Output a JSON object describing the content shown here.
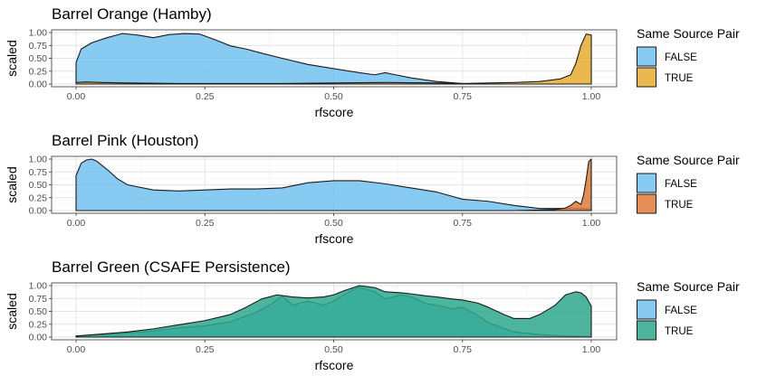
{
  "chart_data": [
    {
      "type": "area",
      "title": "Barrel Orange (Hamby)",
      "xlabel": "rfscore",
      "ylabel": "scaled",
      "xlim": [
        0,
        1
      ],
      "ylim": [
        0,
        1
      ],
      "x_ticks": [
        "0.00",
        "0.25",
        "0.50",
        "0.75",
        "1.00"
      ],
      "y_ticks": [
        "0.00",
        "0.25",
        "0.50",
        "0.75",
        "1.00"
      ],
      "grid": true,
      "legend": {
        "title": "Same Source Pair",
        "position": "right",
        "entries": [
          "FALSE",
          "TRUE"
        ]
      },
      "series": [
        {
          "name": "FALSE",
          "color": "#73C2F0",
          "x": [
            0,
            0.01,
            0.03,
            0.06,
            0.09,
            0.12,
            0.15,
            0.18,
            0.21,
            0.24,
            0.27,
            0.3,
            0.33,
            0.36,
            0.4,
            0.45,
            0.5,
            0.55,
            0.58,
            0.6,
            0.62,
            0.65,
            0.7,
            0.75,
            0.8,
            0.9,
            1.0
          ],
          "y": [
            0.42,
            0.68,
            0.8,
            0.9,
            0.98,
            0.95,
            0.9,
            0.96,
            0.98,
            0.97,
            0.86,
            0.74,
            0.68,
            0.6,
            0.5,
            0.38,
            0.3,
            0.22,
            0.18,
            0.22,
            0.18,
            0.12,
            0.05,
            0.01,
            0.0,
            0.0,
            0.0
          ]
        },
        {
          "name": "TRUE",
          "color": "#E8AB2E",
          "x": [
            0,
            0.02,
            0.05,
            0.1,
            0.2,
            0.3,
            0.4,
            0.5,
            0.6,
            0.7,
            0.75,
            0.8,
            0.85,
            0.9,
            0.94,
            0.96,
            0.97,
            0.98,
            0.99,
            1.0
          ],
          "y": [
            0.03,
            0.04,
            0.03,
            0.02,
            0.01,
            0.01,
            0.01,
            0.02,
            0.03,
            0.02,
            0.01,
            0.02,
            0.03,
            0.05,
            0.1,
            0.18,
            0.4,
            0.75,
            0.97,
            0.95
          ]
        }
      ]
    },
    {
      "type": "area",
      "title": "Barrel Pink (Houston)",
      "xlabel": "rfscore",
      "ylabel": "scaled",
      "xlim": [
        0,
        1
      ],
      "ylim": [
        0,
        1
      ],
      "x_ticks": [
        "0.00",
        "0.25",
        "0.50",
        "0.75",
        "1.00"
      ],
      "y_ticks": [
        "0.00",
        "0.25",
        "0.50",
        "0.75",
        "1.00"
      ],
      "grid": true,
      "legend": {
        "title": "Same Source Pair",
        "position": "right",
        "entries": [
          "FALSE",
          "TRUE"
        ]
      },
      "series": [
        {
          "name": "FALSE",
          "color": "#73C2F0",
          "x": [
            0,
            0.01,
            0.02,
            0.03,
            0.04,
            0.06,
            0.08,
            0.1,
            0.15,
            0.2,
            0.25,
            0.3,
            0.35,
            0.4,
            0.45,
            0.5,
            0.55,
            0.6,
            0.65,
            0.7,
            0.75,
            0.8,
            0.85,
            0.9,
            0.95,
            0.98,
            1.0
          ],
          "y": [
            0.68,
            0.92,
            0.98,
            1.0,
            0.96,
            0.8,
            0.62,
            0.5,
            0.4,
            0.38,
            0.4,
            0.42,
            0.42,
            0.44,
            0.54,
            0.58,
            0.58,
            0.52,
            0.44,
            0.36,
            0.22,
            0.18,
            0.1,
            0.04,
            0.04,
            0.04,
            0.03
          ]
        },
        {
          "name": "TRUE",
          "color": "#E07B39",
          "x": [
            0,
            0.85,
            0.9,
            0.93,
            0.95,
            0.96,
            0.97,
            0.98,
            0.985,
            0.99,
            0.995,
            1.0
          ],
          "y": [
            0.0,
            0.0,
            0.01,
            0.02,
            0.05,
            0.1,
            0.18,
            0.12,
            0.3,
            0.6,
            0.95,
            1.0
          ]
        }
      ]
    },
    {
      "type": "area",
      "title": "Barrel Green (CSAFE Persistence)",
      "xlabel": "rfscore",
      "ylabel": "scaled",
      "xlim": [
        0,
        1
      ],
      "ylim": [
        0,
        1
      ],
      "x_ticks": [
        "0.00",
        "0.25",
        "0.50",
        "0.75",
        "1.00"
      ],
      "y_ticks": [
        "0.00",
        "0.25",
        "0.50",
        "0.75",
        "1.00"
      ],
      "grid": true,
      "legend": {
        "title": "Same Source Pair",
        "position": "right",
        "entries": [
          "FALSE",
          "TRUE"
        ]
      },
      "series": [
        {
          "name": "FALSE",
          "color": "#73C2F0",
          "x": [
            0,
            0.05,
            0.1,
            0.15,
            0.2,
            0.25,
            0.3,
            0.35,
            0.38,
            0.4,
            0.42,
            0.45,
            0.48,
            0.5,
            0.53,
            0.55,
            0.58,
            0.6,
            0.63,
            0.65,
            0.68,
            0.7,
            0.73,
            0.75,
            0.78,
            0.8,
            0.85,
            0.9,
            0.95,
            1.0
          ],
          "y": [
            0.02,
            0.05,
            0.08,
            0.12,
            0.18,
            0.22,
            0.3,
            0.48,
            0.65,
            0.8,
            0.62,
            0.7,
            0.62,
            0.7,
            0.88,
            0.97,
            0.88,
            0.74,
            0.82,
            0.78,
            0.65,
            0.62,
            0.55,
            0.58,
            0.42,
            0.28,
            0.1,
            0.05,
            0.02,
            0.01
          ]
        },
        {
          "name": "TRUE",
          "color": "#2EA88C",
          "x": [
            0,
            0.05,
            0.1,
            0.15,
            0.2,
            0.25,
            0.3,
            0.33,
            0.36,
            0.39,
            0.42,
            0.45,
            0.48,
            0.5,
            0.52,
            0.55,
            0.58,
            0.6,
            0.63,
            0.65,
            0.68,
            0.7,
            0.73,
            0.75,
            0.78,
            0.8,
            0.83,
            0.85,
            0.88,
            0.9,
            0.93,
            0.95,
            0.97,
            0.98,
            0.99,
            1.0
          ],
          "y": [
            0.02,
            0.06,
            0.1,
            0.16,
            0.24,
            0.32,
            0.44,
            0.58,
            0.74,
            0.82,
            0.78,
            0.76,
            0.78,
            0.82,
            0.9,
            1.0,
            0.96,
            0.88,
            0.86,
            0.84,
            0.8,
            0.78,
            0.74,
            0.72,
            0.66,
            0.58,
            0.44,
            0.36,
            0.36,
            0.44,
            0.62,
            0.82,
            0.88,
            0.86,
            0.78,
            0.6
          ]
        }
      ]
    }
  ]
}
